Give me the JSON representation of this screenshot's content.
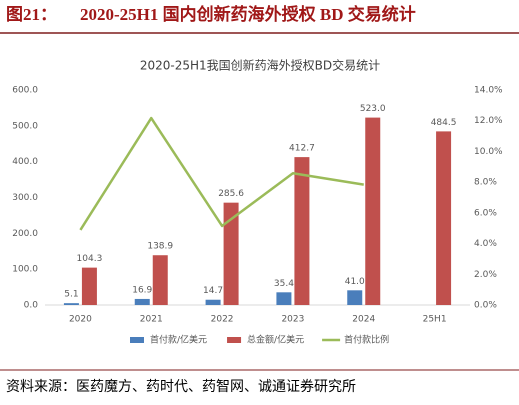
{
  "figure_label": "图21：",
  "source": "资料来源：医药魔方、药时代、药智网、诚通证券研究所",
  "chart_data": {
    "type": "bar",
    "heading": "2020-25H1 国内创新药海外授权 BD 交易统计",
    "title": "2020-25H1我国创新药海外授权BD交易统计",
    "categories": [
      "2020",
      "2021",
      "2022",
      "2023",
      "2024",
      "25H1"
    ],
    "series": [
      {
        "name": "首付款/亿美元",
        "color": "#4a7ebb",
        "values": [
          5.1,
          16.9,
          14.7,
          35.4,
          41.0,
          null
        ],
        "value_labels": [
          "5.1",
          "16.9",
          "14.7",
          "35.4",
          "41.0",
          null
        ]
      },
      {
        "name": "总金额/亿美元",
        "color": "#c0504d",
        "values": [
          104.3,
          138.9,
          285.6,
          412.7,
          523.0,
          484.5
        ],
        "value_labels": [
          "104.3",
          "138.9",
          "285.6",
          "412.7",
          "523.0",
          "484.5"
        ]
      },
      {
        "name": "首付款比例",
        "color": "#9bbb59",
        "type": "line",
        "axis": "y2",
        "values": [
          4.89,
          12.17,
          5.15,
          8.58,
          7.84,
          null
        ]
      }
    ],
    "ylim": [
      0,
      600
    ],
    "yticks": [
      {
        "value": 0,
        "label": "0.0"
      },
      {
        "value": 100,
        "label": "100.0"
      },
      {
        "value": 200,
        "label": "200.0"
      },
      {
        "value": 300,
        "label": "300.0"
      },
      {
        "value": 400,
        "label": "400.0"
      },
      {
        "value": 500,
        "label": "500.0"
      },
      {
        "value": 600,
        "label": "600.0"
      }
    ],
    "y2lim": [
      0,
      14
    ],
    "y2ticks": [
      {
        "value": 0,
        "label": "0.0%"
      },
      {
        "value": 2,
        "label": "2.0%"
      },
      {
        "value": 4,
        "label": "4.0%"
      },
      {
        "value": 6,
        "label": "6.0%"
      },
      {
        "value": 8,
        "label": "8.0%"
      },
      {
        "value": 10,
        "label": "10.0%"
      },
      {
        "value": 12,
        "label": "12.0%"
      },
      {
        "value": 14,
        "label": "14.0%"
      }
    ],
    "grid": false,
    "legend": "bottom"
  }
}
